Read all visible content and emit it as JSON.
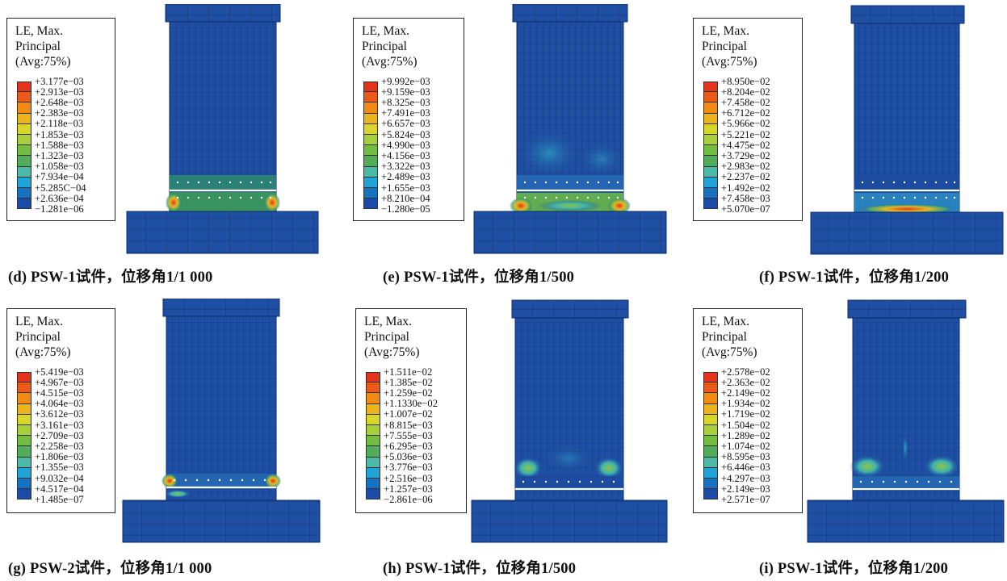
{
  "legend_colors": [
    "#e2341a",
    "#ea5a1a",
    "#f28a14",
    "#e9b41d",
    "#d9d52c",
    "#a6cf3b",
    "#71be43",
    "#52ac5a",
    "#4db9a7",
    "#22a3d6",
    "#1673c2",
    "#1b4aa7"
  ],
  "panels": [
    {
      "legend": {
        "title": "LE, Max.\nPrincipal\n(Avg:75%)",
        "values": [
          "+3.177e−03",
          "+2.913e−03",
          "+2.648e−03",
          "+2.383e−03",
          "+2.118e−03",
          "+1.853e−03",
          "+1.588e−03",
          "+1.323e−03",
          "+1.058e−03",
          "+7.934e−04",
          "+5.285C−04",
          "+2.636e−04",
          "−1.281e−06"
        ]
      },
      "caption": "(d) PSW-1试件，位移角1/1 000"
    },
    {
      "legend": {
        "title": "LE, Max.\nPrincipal\n(Avg:75%)",
        "values": [
          "+9.992e−03",
          "+9.159e−03",
          "+8.325e−03",
          "+7.491e−03",
          "+6.657e−03",
          "+5.824e−03",
          "+4.990e−03",
          "+4.156e−03",
          "+3.322e−03",
          "+2.489e−03",
          "+1.655e−03",
          "+8.210e−04",
          "−1.280e−05"
        ]
      },
      "caption": "(e) PSW-1试件，位移角1/500"
    },
    {
      "legend": {
        "title": "LE, Max.\nPrincipal\n(Avg:75%)",
        "values": [
          "+8.950e−02",
          "+8.204e−02",
          "+7.458e−02",
          "+6.712e−02",
          "+5.966e−02",
          "+5.221e−02",
          "+4.475e−02",
          "+3.729e−02",
          "+2.983e−02",
          "+2.237e−02",
          "+1.492e−02",
          "+7.458e−03",
          "+5.070e−07"
        ]
      },
      "caption": "(f) PSW-1试件，位移角1/200"
    },
    {
      "legend": {
        "title": "LE, Max.\nPrincipal\n(Avg:75%)",
        "values": [
          "+5.419e−03",
          "+4.967e−03",
          "+4.515e−03",
          "+4.064e−03",
          "+3.612e−03",
          "+3.161e−03",
          "+2.709e−03",
          "+2.258e−03",
          "+1.806e−03",
          "+1.355e−03",
          "+9.032e−04",
          "+4.517e−04",
          "+1.485e−07"
        ]
      },
      "caption": "(g) PSW-2试件，位移角1/1 000"
    },
    {
      "legend": {
        "title": "LE, Max.\nPrincipal\n(Avg:75%)",
        "values": [
          "+1.511e−02",
          "+1.385e−02",
          "+1.259e−02",
          "+1.1330e−02",
          "+1.007e−02",
          "+8.815e−03",
          "+7.555e−03",
          "+6.295e−03",
          "+5.036e−03",
          "+3.776e−03",
          "+2.516e−03",
          "+1.257e−03",
          "−2.861e−06"
        ]
      },
      "caption": "(h) PSW-1试件，位移角1/500"
    },
    {
      "legend": {
        "title": "LE, Max.\nPrincipal\n(Avg:75%)",
        "values": [
          "+2.578e−02",
          "+2.363e−02",
          "+2.149e−02",
          "+1.934e−02",
          "+1.719e−02",
          "+1.504e−02",
          "+1.289e−02",
          "+1.074e−02",
          "+8.595e−03",
          "+6.446e−03",
          "+4.297e−03",
          "+2.149e−03",
          "+2.571e−07"
        ]
      },
      "caption": "(i) PSW-1试件，位移角1/200"
    }
  ]
}
